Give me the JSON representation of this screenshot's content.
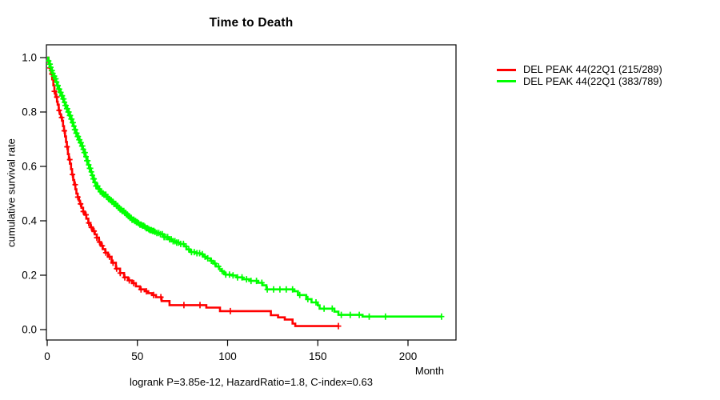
{
  "chart_data": {
    "type": "line",
    "subtype": "kaplan-meier-step",
    "title": "Time to Death",
    "xlabel": "Month",
    "ylabel": "cumulative survival rate",
    "footnote": "logrank P=3.85e-12, HazardRatio=1.8, C-index=0.63",
    "grid": false,
    "legend_position": "top-right-outside",
    "x_axis": {
      "ticks": [
        0,
        50,
        100,
        150,
        200
      ],
      "range": [
        0,
        226
      ]
    },
    "y_axis": {
      "ticks": [
        "0.0",
        "0.2",
        "0.4",
        "0.6",
        "0.8",
        "1.0"
      ],
      "range": [
        0,
        1
      ]
    },
    "series": [
      {
        "name": "DEL PEAK 44(22Q1 (215/289)",
        "color": "#FF0000",
        "steps": [
          [
            0,
            1.0
          ],
          [
            0.7,
            0.983
          ],
          [
            1.4,
            0.962
          ],
          [
            2.1,
            0.94
          ],
          [
            2.8,
            0.92
          ],
          [
            3.4,
            0.898
          ],
          [
            4.0,
            0.876
          ],
          [
            4.7,
            0.855
          ],
          [
            5.4,
            0.838
          ],
          [
            5.8,
            0.827
          ],
          [
            6.4,
            0.806
          ],
          [
            7.0,
            0.792
          ],
          [
            7.6,
            0.78
          ],
          [
            8.2,
            0.768
          ],
          [
            8.8,
            0.748
          ],
          [
            9.3,
            0.731
          ],
          [
            9.9,
            0.71
          ],
          [
            10.4,
            0.69
          ],
          [
            10.9,
            0.672
          ],
          [
            11.5,
            0.645
          ],
          [
            12.0,
            0.625
          ],
          [
            12.6,
            0.61
          ],
          [
            13.2,
            0.59
          ],
          [
            13.8,
            0.57
          ],
          [
            14.4,
            0.55
          ],
          [
            15.0,
            0.533
          ],
          [
            15.6,
            0.516
          ],
          [
            16.2,
            0.5
          ],
          [
            16.9,
            0.487
          ],
          [
            17.6,
            0.474
          ],
          [
            18.2,
            0.462
          ],
          [
            19.0,
            0.448
          ],
          [
            19.9,
            0.434
          ],
          [
            20.8,
            0.422
          ],
          [
            21.7,
            0.408
          ],
          [
            22.8,
            0.392
          ],
          [
            24.0,
            0.376
          ],
          [
            25.2,
            0.362
          ],
          [
            26.4,
            0.35
          ],
          [
            27.5,
            0.338
          ],
          [
            28.7,
            0.322
          ],
          [
            29.8,
            0.308
          ],
          [
            30.8,
            0.296
          ],
          [
            32.2,
            0.283
          ],
          [
            33.7,
            0.268
          ],
          [
            35.7,
            0.246
          ],
          [
            38.1,
            0.224
          ],
          [
            40.4,
            0.208
          ],
          [
            42.6,
            0.192
          ],
          [
            44.8,
            0.181
          ],
          [
            47.0,
            0.171
          ],
          [
            49.2,
            0.159
          ],
          [
            51.4,
            0.148
          ],
          [
            54.0,
            0.141
          ],
          [
            56.0,
            0.134
          ],
          [
            58.1,
            0.127
          ],
          [
            60.3,
            0.119
          ],
          [
            63.4,
            0.105
          ],
          [
            67.8,
            0.09
          ],
          [
            88.2,
            0.081
          ],
          [
            95.8,
            0.068
          ],
          [
            124.0,
            0.053
          ],
          [
            128.0,
            0.045
          ],
          [
            131.7,
            0.037
          ],
          [
            136.0,
            0.022
          ],
          [
            137.5,
            0.013
          ],
          [
            161.4,
            0.013
          ]
        ],
        "censor_times": [
          1.6,
          2.6,
          4.0,
          5.3,
          6.6,
          8.0,
          9.5,
          11.0,
          12.5,
          14.0,
          15.5,
          17.0,
          18.5,
          20.0,
          21.5,
          23.0,
          24.5,
          26.0,
          27.5,
          29.0,
          30.5,
          32.5,
          34.5,
          36.5,
          38.5,
          40.5,
          43.0,
          45.5,
          48.0,
          52.0,
          55.0,
          59.0,
          63.0,
          75.8,
          84.7,
          101.5,
          161.4
        ]
      },
      {
        "name": "DEL PEAK 44(22Q1 (383/789)",
        "color": "#00FF00",
        "steps": [
          [
            0,
            1.0
          ],
          [
            0.6,
            0.988
          ],
          [
            1.2,
            0.976
          ],
          [
            1.8,
            0.964
          ],
          [
            2.4,
            0.952
          ],
          [
            3.0,
            0.942
          ],
          [
            3.6,
            0.932
          ],
          [
            4.2,
            0.922
          ],
          [
            4.9,
            0.91
          ],
          [
            5.6,
            0.897
          ],
          [
            6.3,
            0.884
          ],
          [
            7.1,
            0.872
          ],
          [
            7.8,
            0.86
          ],
          [
            8.5,
            0.848
          ],
          [
            9.3,
            0.836
          ],
          [
            10.0,
            0.824
          ],
          [
            10.8,
            0.812
          ],
          [
            11.5,
            0.8
          ],
          [
            12.2,
            0.787
          ],
          [
            13.0,
            0.774
          ],
          [
            13.7,
            0.761
          ],
          [
            14.5,
            0.748
          ],
          [
            15.2,
            0.735
          ],
          [
            16.0,
            0.722
          ],
          [
            16.7,
            0.71
          ],
          [
            17.5,
            0.698
          ],
          [
            18.2,
            0.687
          ],
          [
            19.0,
            0.675
          ],
          [
            19.7,
            0.663
          ],
          [
            20.4,
            0.651
          ],
          [
            21.1,
            0.636
          ],
          [
            21.9,
            0.621
          ],
          [
            22.6,
            0.606
          ],
          [
            23.3,
            0.593
          ],
          [
            24.1,
            0.58
          ],
          [
            24.8,
            0.567
          ],
          [
            25.5,
            0.554
          ],
          [
            26.3,
            0.541
          ],
          [
            27.0,
            0.528
          ],
          [
            28.1,
            0.517
          ],
          [
            29.3,
            0.507
          ],
          [
            30.4,
            0.501
          ],
          [
            31.5,
            0.496
          ],
          [
            32.6,
            0.488
          ],
          [
            33.7,
            0.48
          ],
          [
            34.8,
            0.476
          ],
          [
            35.9,
            0.47
          ],
          [
            37.0,
            0.462
          ],
          [
            38.1,
            0.455
          ],
          [
            39.2,
            0.448
          ],
          [
            40.4,
            0.442
          ],
          [
            41.5,
            0.436
          ],
          [
            42.6,
            0.429
          ],
          [
            43.7,
            0.423
          ],
          [
            44.8,
            0.417
          ],
          [
            45.9,
            0.411
          ],
          [
            47.0,
            0.404
          ],
          [
            48.1,
            0.399
          ],
          [
            49.2,
            0.395
          ],
          [
            50.3,
            0.391
          ],
          [
            51.4,
            0.386
          ],
          [
            52.5,
            0.382
          ],
          [
            53.7,
            0.378
          ],
          [
            54.8,
            0.373
          ],
          [
            55.9,
            0.369
          ],
          [
            57.0,
            0.366
          ],
          [
            58.1,
            0.363
          ],
          [
            59.2,
            0.359
          ],
          [
            60.3,
            0.355
          ],
          [
            62.5,
            0.351
          ],
          [
            64.7,
            0.34
          ],
          [
            67.0,
            0.332
          ],
          [
            69.2,
            0.325
          ],
          [
            71.4,
            0.32
          ],
          [
            73.6,
            0.315
          ],
          [
            75.8,
            0.306
          ],
          [
            77.2,
            0.295
          ],
          [
            79.4,
            0.285
          ],
          [
            82.0,
            0.281
          ],
          [
            84.7,
            0.277
          ],
          [
            86.5,
            0.268
          ],
          [
            88.2,
            0.262
          ],
          [
            90.5,
            0.253
          ],
          [
            92.0,
            0.243
          ],
          [
            93.5,
            0.232
          ],
          [
            95.4,
            0.222
          ],
          [
            96.7,
            0.215
          ],
          [
            98.0,
            0.208
          ],
          [
            98.9,
            0.202
          ],
          [
            102.4,
            0.199
          ],
          [
            105.0,
            0.192
          ],
          [
            108.2,
            0.185
          ],
          [
            112.0,
            0.179
          ],
          [
            117.0,
            0.172
          ],
          [
            119.3,
            0.163
          ],
          [
            121.5,
            0.148
          ],
          [
            137.0,
            0.141
          ],
          [
            139.0,
            0.127
          ],
          [
            143.6,
            0.112
          ],
          [
            146.5,
            0.1
          ],
          [
            150.0,
            0.089
          ],
          [
            151.0,
            0.077
          ],
          [
            159.2,
            0.066
          ],
          [
            161.4,
            0.054
          ],
          [
            174.8,
            0.048
          ],
          [
            218.6,
            0.048
          ]
        ],
        "censor_times": [
          0.8,
          1.2,
          1.6,
          2.0,
          2.4,
          2.8,
          3.2,
          3.6,
          4.0,
          4.4,
          4.8,
          5.2,
          5.6,
          6.0,
          6.4,
          6.8,
          7.2,
          7.6,
          8.0,
          8.4,
          8.8,
          9.2,
          9.6,
          10.0,
          10.4,
          10.8,
          11.2,
          11.6,
          12.0,
          12.4,
          12.8,
          13.2,
          13.6,
          14.0,
          14.4,
          14.8,
          15.2,
          15.6,
          16.0,
          16.4,
          16.8,
          17.2,
          17.6,
          18.0,
          18.4,
          18.8,
          19.2,
          19.6,
          20.0,
          20.5,
          21.0,
          21.5,
          22.0,
          22.5,
          23.0,
          23.5,
          24.0,
          24.5,
          25.0,
          25.5,
          26.0,
          26.5,
          27.0,
          27.5,
          28.0,
          28.5,
          29.0,
          29.5,
          30.0,
          30.5,
          31.0,
          31.5,
          32.0,
          32.5,
          33.0,
          33.5,
          34.0,
          34.5,
          35.0,
          35.5,
          36.0,
          36.5,
          37.0,
          37.5,
          38.0,
          38.5,
          39.0,
          39.5,
          40.0,
          40.5,
          41.0,
          41.5,
          42.0,
          42.5,
          43.0,
          43.5,
          44.0,
          44.5,
          45.0,
          45.5,
          46.0,
          46.5,
          47.0,
          47.5,
          48.0,
          48.5,
          49.0,
          49.5,
          50.0,
          50.7,
          51.4,
          52.1,
          52.8,
          53.5,
          54.2,
          54.9,
          55.6,
          56.3,
          57.0,
          57.7,
          58.4,
          59.1,
          59.8,
          60.8,
          61.8,
          62.8,
          63.8,
          64.8,
          65.8,
          66.8,
          67.8,
          68.8,
          69.8,
          70.8,
          71.8,
          72.8,
          74.0,
          75.5,
          77.0,
          78.5,
          80.0,
          81.5,
          83.0,
          84.5,
          86.0,
          87.5,
          89.0,
          91.0,
          93.0,
          95.0,
          97.0,
          99.0,
          101.0,
          103.0,
          105.5,
          108.0,
          110.5,
          113.0,
          116.0,
          119.0,
          122.0,
          125.5,
          129.0,
          132.5,
          136.0,
          140.0,
          144.5,
          149.0,
          153.5,
          158.0,
          163.0,
          168.0,
          173.0,
          178.5,
          187.5,
          218.6
        ]
      }
    ]
  }
}
